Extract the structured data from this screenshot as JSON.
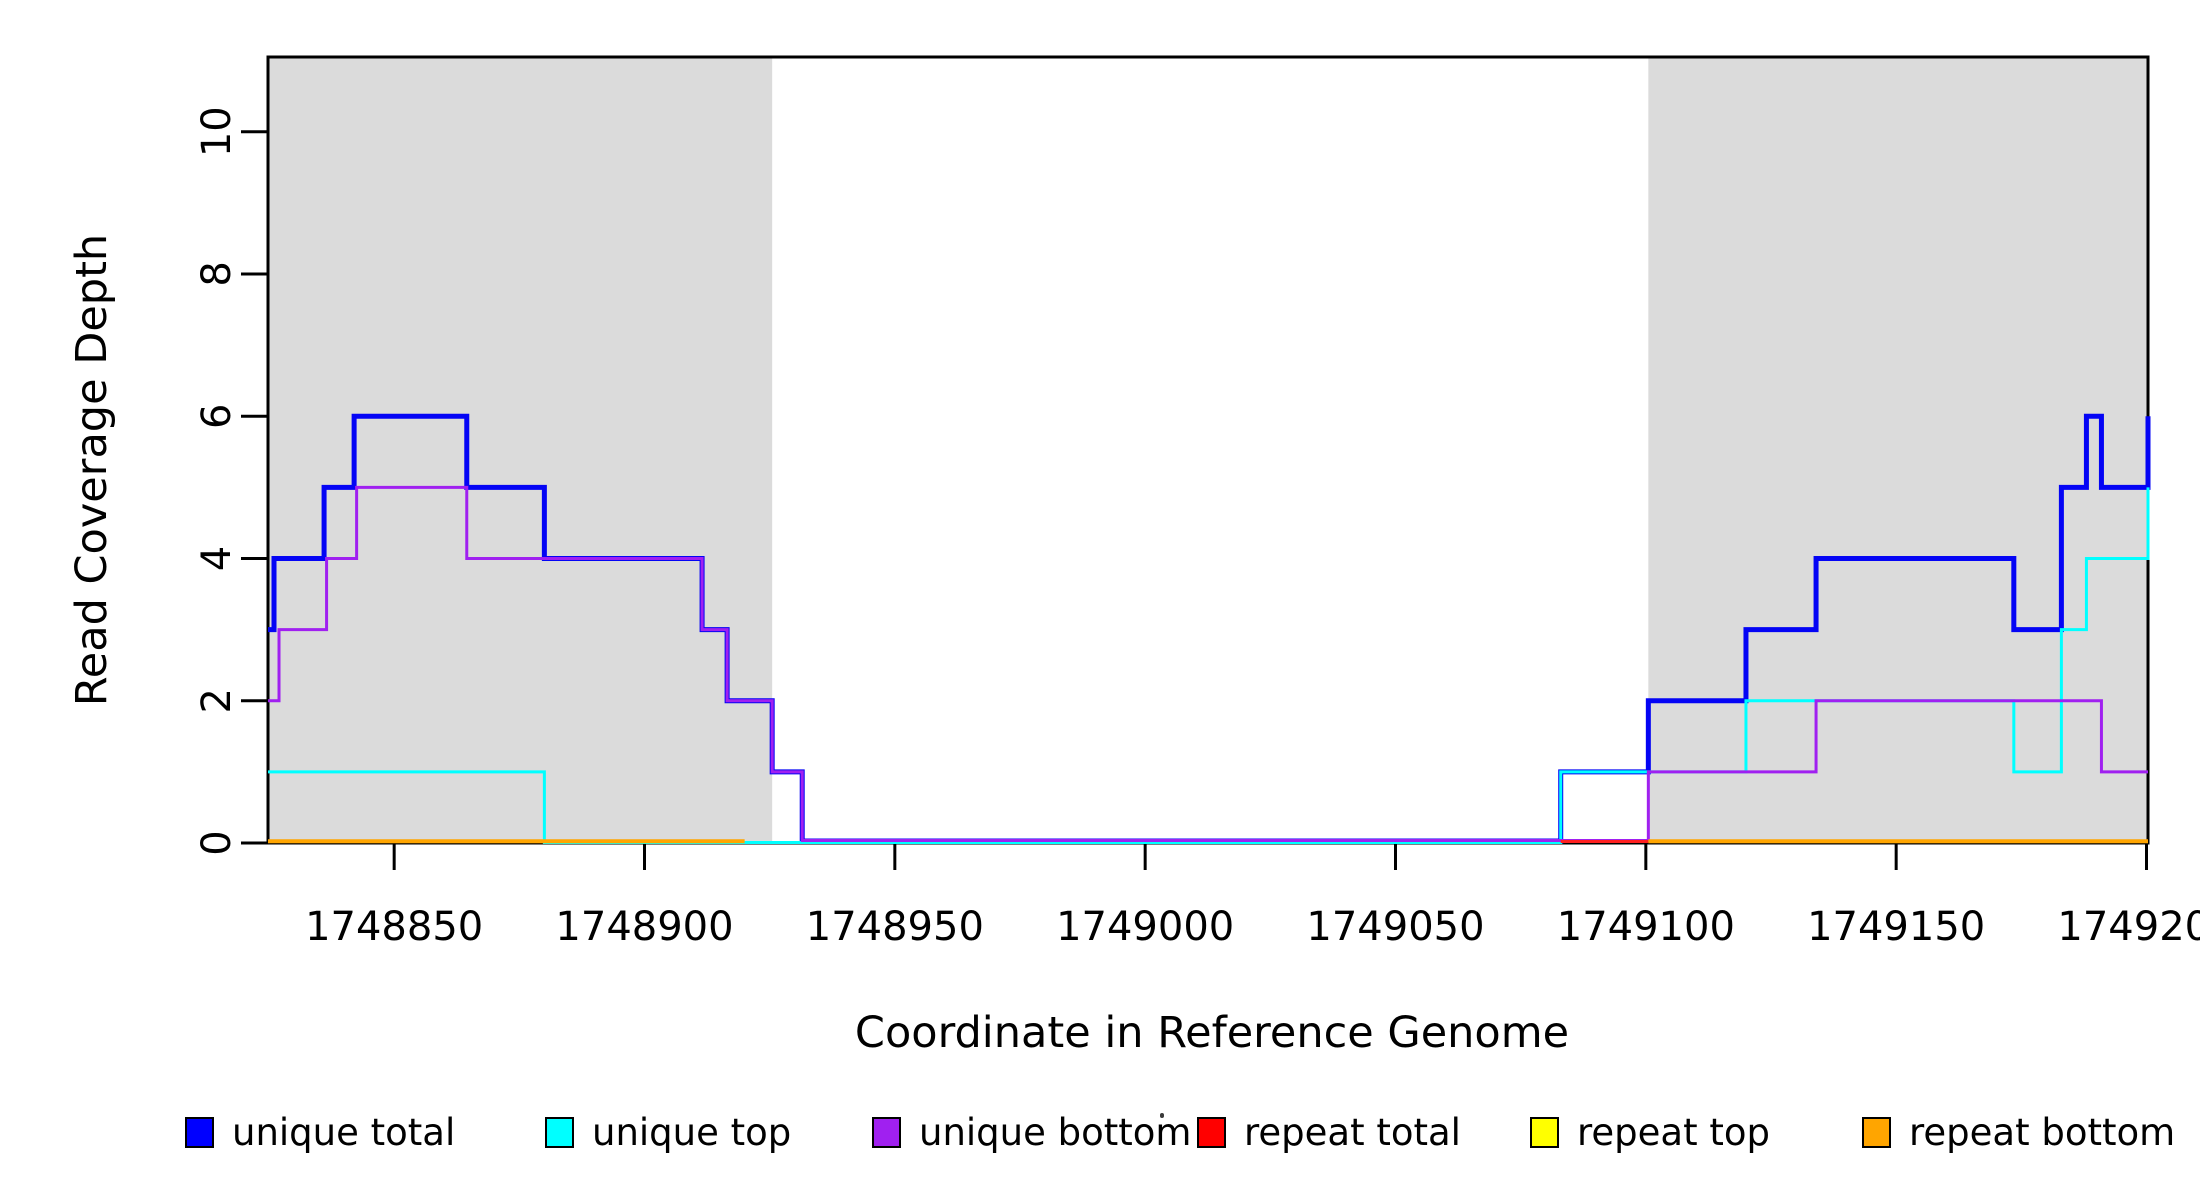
{
  "figure": {
    "background": "#ffffff",
    "plot_background": "#ffffff",
    "shaded_band_color": "#dbdbdb",
    "axis_color": "#000000"
  },
  "chart_data": {
    "type": "line",
    "subtype": "step",
    "title": "",
    "xlabel": "Coordinate in Reference Genome",
    "ylabel": "Read Coverage Depth",
    "x_range": [
      1748824.8,
      1749200.3
    ],
    "y_range": [
      0,
      11.05
    ],
    "grid": false,
    "legend_position": "bottom",
    "x_ticks": [
      {
        "value": 1748850,
        "label": "1748850"
      },
      {
        "value": 1748900,
        "label": "1748900"
      },
      {
        "value": 1748950,
        "label": "1748950"
      },
      {
        "value": 1749000,
        "label": "1749000"
      },
      {
        "value": 1749050,
        "label": "1749050"
      },
      {
        "value": 1749100,
        "label": "1749100"
      },
      {
        "value": 1749150,
        "label": "1749150"
      },
      {
        "value": 1749200,
        "label": "1749200"
      }
    ],
    "y_ticks": [
      {
        "value": 0,
        "label": "0"
      },
      {
        "value": 2,
        "label": "2"
      },
      {
        "value": 4,
        "label": "4"
      },
      {
        "value": 6,
        "label": "6"
      },
      {
        "value": 8,
        "label": "8"
      },
      {
        "value": 10,
        "label": "10"
      }
    ],
    "shaded_regions": [
      {
        "name": "repeat-region-left",
        "x_start": 1748824.8,
        "x_end": 1748925.5
      },
      {
        "name": "repeat-region-right",
        "x_start": 1749100.5,
        "x_end": 1749200.3
      }
    ],
    "series": [
      {
        "name": "unique total",
        "color": "#0404f5",
        "line_width": 5,
        "start_value": 3,
        "steps": [
          [
            1748826,
            4
          ],
          [
            1748836,
            5
          ],
          [
            1748842,
            6
          ],
          [
            1748864.5,
            5
          ],
          [
            1748880,
            4
          ],
          [
            1748911.5,
            3
          ],
          [
            1748916.5,
            2
          ],
          [
            1748925.5,
            1
          ],
          [
            1748931.5,
            0
          ],
          [
            1749083,
            1
          ],
          [
            1749100.5,
            2
          ],
          [
            1749120,
            3
          ],
          [
            1749134,
            4
          ],
          [
            1749173.5,
            3
          ],
          [
            1749183,
            5
          ],
          [
            1749188,
            6
          ],
          [
            1749191,
            5
          ],
          [
            1749200.3,
            6
          ]
        ]
      },
      {
        "name": "unique top",
        "color": "#00ffff",
        "line_width": 3,
        "start_value": 1,
        "steps": [
          [
            1748880,
            0
          ],
          [
            1749083,
            1
          ],
          [
            1749120,
            2
          ],
          [
            1749173.5,
            1
          ],
          [
            1749183,
            3
          ],
          [
            1749188,
            4
          ],
          [
            1749200.3,
            5
          ]
        ]
      },
      {
        "name": "unique bottom",
        "color": "#a020f0",
        "line_width": 3,
        "start_value": 2,
        "steps": [
          [
            1748827,
            3
          ],
          [
            1748836.5,
            4
          ],
          [
            1748842.5,
            5
          ],
          [
            1748864.5,
            4
          ],
          [
            1748911.5,
            3
          ],
          [
            1748916.5,
            2
          ],
          [
            1748925.5,
            1
          ],
          [
            1748931.5,
            0
          ],
          [
            1749100.5,
            1
          ],
          [
            1749134,
            2
          ],
          [
            1749191,
            1
          ]
        ]
      },
      {
        "name": "repeat total",
        "color": "#ff2020",
        "line_width": 3,
        "start_value": 0,
        "steps": [],
        "visible_zero_segments": [
          [
            1749083,
            1749100.5
          ]
        ]
      },
      {
        "name": "repeat top",
        "color": "#ffff00",
        "line_width": 3,
        "start_value": 0,
        "steps": [],
        "visible_zero_segments": []
      },
      {
        "name": "repeat bottom",
        "color": "#ffa500",
        "line_width": 4,
        "start_value": 0,
        "steps": [],
        "visible_zero_segments": [
          [
            1748824.8,
            1748920
          ],
          [
            1749100.5,
            1749200.3
          ]
        ]
      }
    ]
  },
  "legend": {
    "items": [
      {
        "label": "unique total",
        "color": "#0000ff"
      },
      {
        "label": "unique top",
        "color": "#00ffff"
      },
      {
        "label": "unique bottom",
        "color": "#a020f0"
      },
      {
        "label": "repeat total",
        "color": "#ff0000"
      },
      {
        "label": "repeat top",
        "color": "#ffff00"
      },
      {
        "label": "repeat bottom",
        "color": "#ffa500"
      }
    ]
  }
}
